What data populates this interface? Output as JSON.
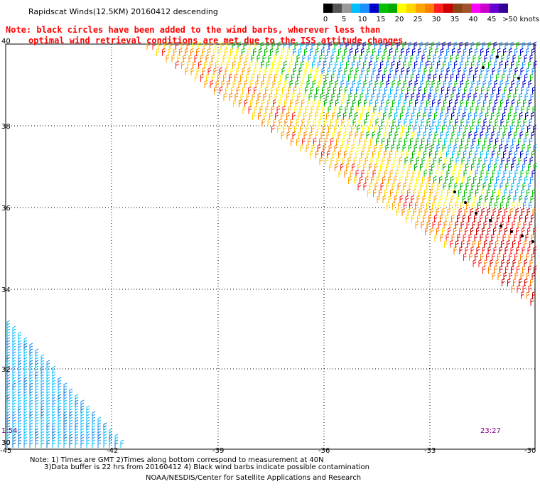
{
  "title": "Rapidscat Winds(12.5KM) 20160412 descending",
  "note": {
    "line1": "Note: black circles have been added to the wind barbs, wherever less than",
    "line2": "optimal wind retrieval conditions are met due to the ISS attitude changes."
  },
  "legend": {
    "labels": [
      "0",
      "5",
      "10",
      "15",
      "20",
      "25",
      "30",
      "35",
      "40",
      "45",
      ">50 knots"
    ],
    "colors": [
      "#000000",
      "#555555",
      "#999999",
      "#00bfff",
      "#1e90ff",
      "#0000cd",
      "#00c000",
      "#00aa00",
      "#ffff00",
      "#ffd700",
      "#ffa500",
      "#ff7f00",
      "#ff2020",
      "#cc0000",
      "#8b4513",
      "#a0522d",
      "#ff00ff",
      "#cc00cc",
      "#6600cc",
      "#330099"
    ]
  },
  "map": {
    "lat_labels": [
      "40",
      "38",
      "36",
      "34",
      "32",
      "30"
    ],
    "lon_labels": [
      "-45",
      "-42",
      "-39",
      "-36",
      "-33",
      "-30"
    ]
  },
  "times": {
    "left": "1:54",
    "right": "23:27"
  },
  "footer": {
    "line1": "Note: 1) Times are GMT 2)Times along bottom correspond to measurement at 40N",
    "line2": "3)Data buffer is 22 hrs from 20160412 4) Black wind barbs indicate possible contamination",
    "credit": "NOAA/NESDIS/Center for Satellite Applications and Research"
  }
}
